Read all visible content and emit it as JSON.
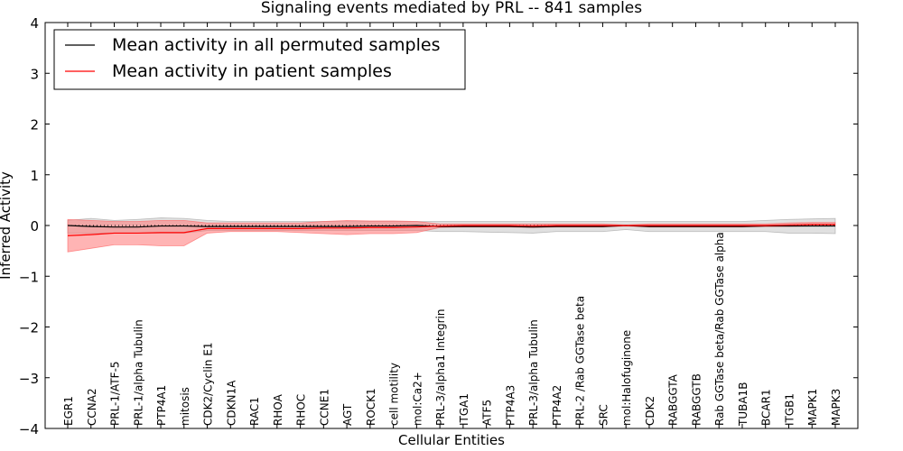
{
  "chart_data": {
    "type": "line",
    "title": "Signaling events mediated by PRL -- 841 samples",
    "xlabel": "Cellular Entities",
    "ylabel": "Inferred Activity",
    "ylim": [
      -4,
      4
    ],
    "yticks": [
      "−4",
      "−3",
      "−2",
      "−1",
      "0",
      "1",
      "2",
      "3",
      "4"
    ],
    "ytick_values": [
      -4,
      -3,
      -2,
      -1,
      0,
      1,
      2,
      3,
      4
    ],
    "legend_position": "top-left",
    "colors": {
      "permuted": "#000000",
      "patient": "#ff0000",
      "permuted_band": "#bbbbbb",
      "patient_band": "#ff7777"
    },
    "categories": [
      "EGR1",
      "CCNA2",
      "PRL-1/ATF-5",
      "PRL-1/alpha Tubulin",
      "PTP4A1",
      "mitosis",
      "CDK2/Cyclin E1",
      "CDKN1A",
      "RAC1",
      "RHOA",
      "RHOC",
      "CCNE1",
      "AGT",
      "ROCK1",
      "cell motility",
      "mol:Ca2+",
      "PRL-3/alpha1 Integrin",
      "ITGA1",
      "ATF5",
      "PTP4A3",
      "PRL-3/alpha Tubulin",
      "PTP4A2",
      "PRL-2 /Rab GGTase beta",
      "SRC",
      "mol:Halofuginone",
      "CDK2",
      "RABGGTA",
      "RABGGTB",
      "Rab GGTase beta/Rab GGTase alpha",
      "TUBA1B",
      "BCAR1",
      "ITGB1",
      "MAPK1",
      "MAPK3"
    ],
    "series": [
      {
        "name": "Mean activity in all permuted samples",
        "values": [
          0.0,
          -0.02,
          -0.03,
          -0.03,
          -0.01,
          -0.01,
          -0.02,
          -0.02,
          -0.02,
          -0.02,
          -0.02,
          -0.02,
          -0.02,
          -0.01,
          -0.01,
          0.0,
          -0.02,
          -0.02,
          -0.02,
          -0.02,
          -0.03,
          -0.02,
          -0.02,
          -0.02,
          0.0,
          -0.02,
          -0.02,
          -0.02,
          -0.02,
          -0.02,
          -0.01,
          -0.01,
          -0.01,
          -0.01
        ],
        "lower": [
          -0.15,
          -0.15,
          -0.15,
          -0.15,
          -0.15,
          -0.15,
          -0.1,
          -0.1,
          -0.1,
          -0.1,
          -0.1,
          -0.1,
          -0.1,
          -0.1,
          -0.1,
          -0.1,
          -0.12,
          -0.12,
          -0.13,
          -0.14,
          -0.15,
          -0.12,
          -0.12,
          -0.12,
          -0.08,
          -0.12,
          -0.12,
          -0.12,
          -0.12,
          -0.12,
          -0.12,
          -0.15,
          -0.15,
          -0.16
        ],
        "upper": [
          0.1,
          0.14,
          0.1,
          0.12,
          0.15,
          0.14,
          0.1,
          0.08,
          0.08,
          0.08,
          0.08,
          0.08,
          0.08,
          0.08,
          0.08,
          0.08,
          0.08,
          0.08,
          0.08,
          0.08,
          0.08,
          0.08,
          0.08,
          0.08,
          0.08,
          0.08,
          0.08,
          0.08,
          0.08,
          0.08,
          0.1,
          0.12,
          0.13,
          0.14
        ]
      },
      {
        "name": "Mean activity in patient samples",
        "values": [
          -0.2,
          -0.18,
          -0.15,
          -0.15,
          -0.14,
          -0.14,
          -0.06,
          -0.06,
          -0.06,
          -0.06,
          -0.06,
          -0.05,
          -0.05,
          -0.04,
          -0.04,
          -0.03,
          -0.01,
          0.0,
          0.0,
          0.0,
          -0.01,
          0.0,
          0.0,
          0.0,
          0.0,
          0.0,
          0.0,
          0.0,
          0.0,
          0.0,
          0.0,
          0.01,
          0.02,
          0.02
        ],
        "lower": [
          -0.52,
          -0.45,
          -0.38,
          -0.38,
          -0.4,
          -0.4,
          -0.15,
          -0.12,
          -0.12,
          -0.12,
          -0.14,
          -0.16,
          -0.18,
          -0.16,
          -0.16,
          -0.14,
          -0.04,
          -0.03,
          -0.03,
          -0.03,
          -0.04,
          -0.03,
          -0.03,
          -0.03,
          -0.01,
          -0.03,
          -0.03,
          -0.03,
          -0.03,
          -0.03,
          -0.02,
          -0.02,
          -0.01,
          -0.01
        ],
        "upper": [
          0.12,
          0.1,
          0.08,
          0.08,
          0.1,
          0.1,
          0.05,
          0.05,
          0.05,
          0.05,
          0.05,
          0.08,
          0.1,
          0.09,
          0.09,
          0.08,
          0.03,
          0.03,
          0.03,
          0.03,
          0.03,
          0.03,
          0.03,
          0.03,
          0.01,
          0.03,
          0.03,
          0.03,
          0.03,
          0.03,
          0.03,
          0.05,
          0.06,
          0.06
        ]
      }
    ]
  }
}
